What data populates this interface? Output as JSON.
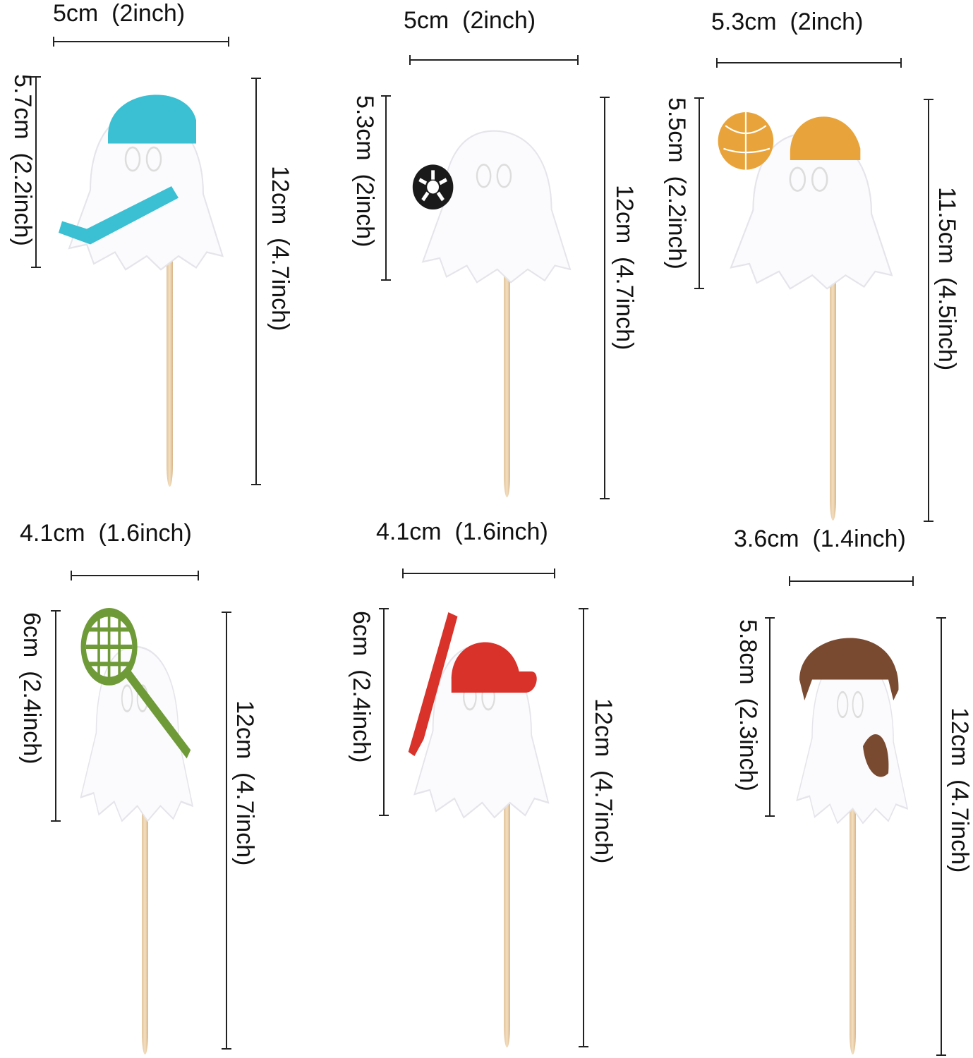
{
  "toppers": [
    {
      "name": "hockey-ghost",
      "width_label": "5cm  (2inch)",
      "height_label": "5.7cm  (2.2inch)",
      "total_label": "12cm  (4.7inch)",
      "accent": "#3bbfd2",
      "item": "hockey-helmet-and-stick"
    },
    {
      "name": "soccer-ghost",
      "width_label": "5cm  (2inch)",
      "height_label": "5.3cm  (2inch)",
      "total_label": "12cm  (4.7inch)",
      "accent": "#1a1a1a",
      "item": "soccer-ball"
    },
    {
      "name": "basketball-ghost",
      "width_label": "5.3cm  (2inch)",
      "height_label": "5.5cm  (2.2inch)",
      "total_label": "11.5cm  (4.5inch)",
      "accent": "#e8a43a",
      "item": "basketball-and-beanie"
    },
    {
      "name": "tennis-ghost",
      "width_label": "4.1cm  (1.6inch)",
      "height_label": "6cm  (2.4inch)",
      "total_label": "12cm  (4.7inch)",
      "accent": "#6f9a38",
      "item": "tennis-racket"
    },
    {
      "name": "baseball-ghost",
      "width_label": "4.1cm  (1.6inch)",
      "height_label": "6cm  (2.4inch)",
      "total_label": "12cm  (4.7inch)",
      "accent": "#d8322a",
      "item": "baseball-bat-and-cap"
    },
    {
      "name": "football-ghost",
      "width_label": "3.6cm  (1.4inch)",
      "height_label": "5.8cm  (2.3inch)",
      "total_label": "12cm  (4.7inch)",
      "accent": "#7a4a30",
      "item": "football-helmet-and-ball"
    }
  ]
}
